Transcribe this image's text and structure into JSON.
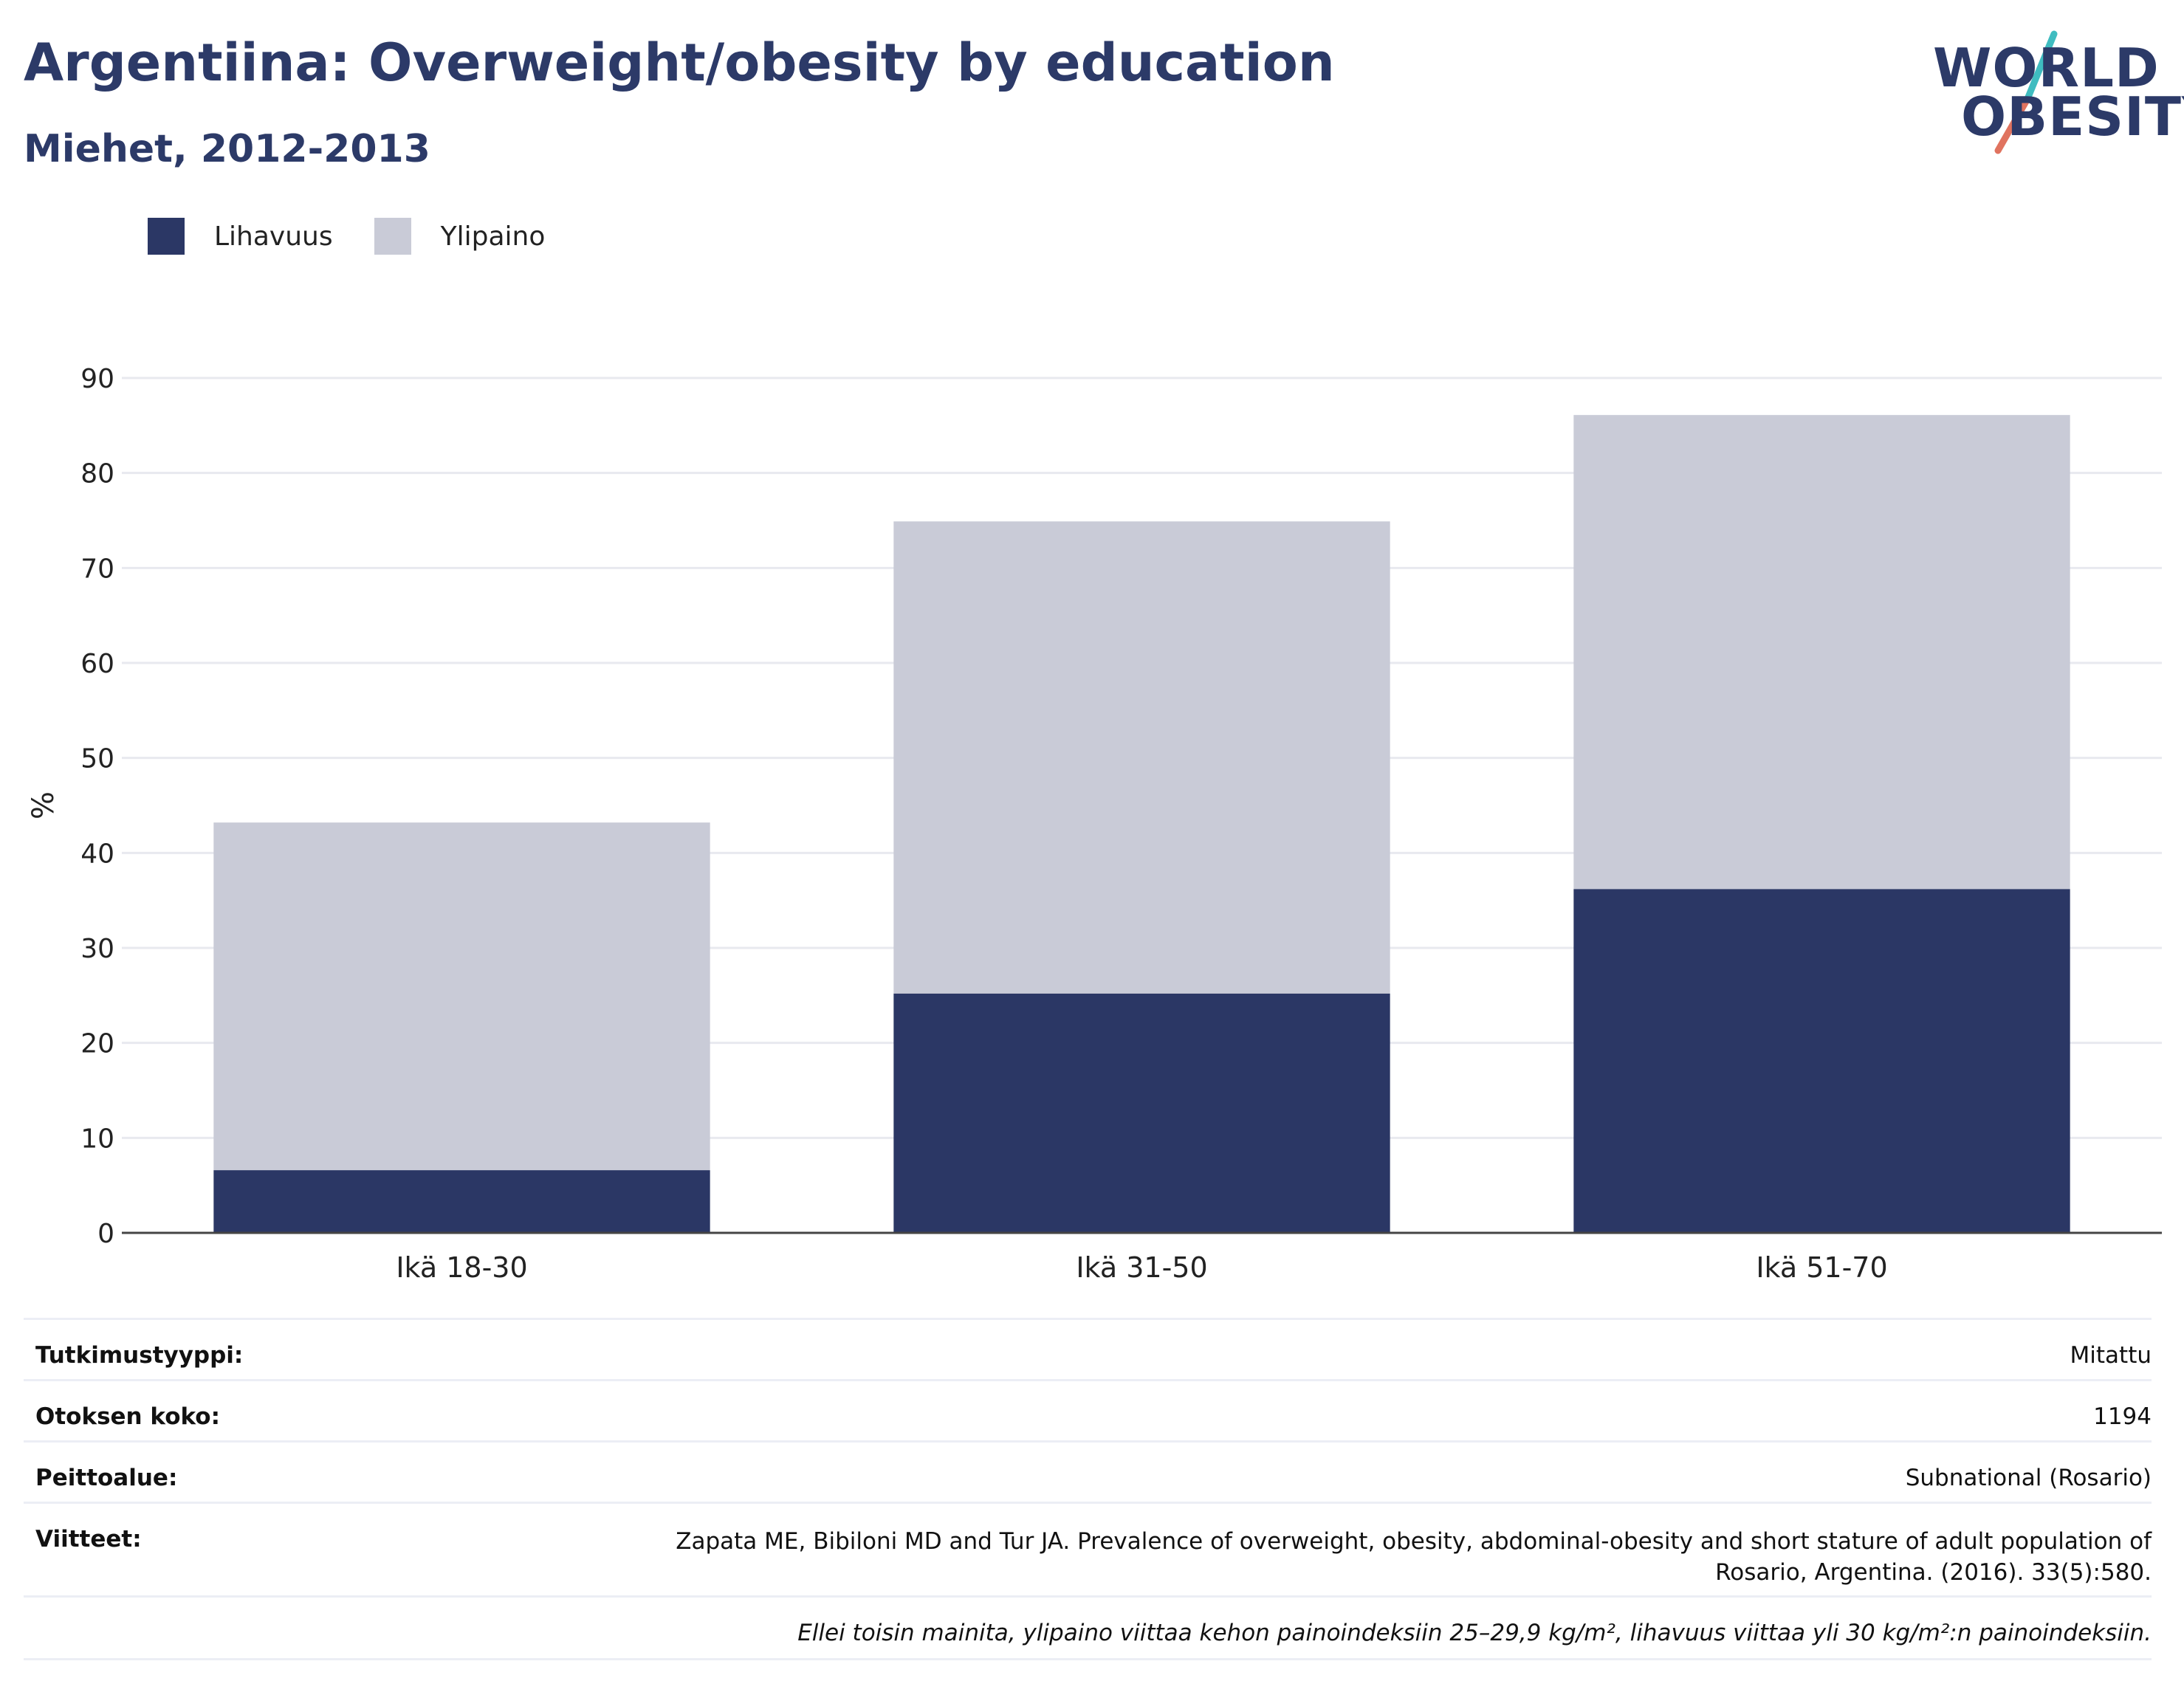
{
  "header": {
    "title": "Argentiina: Overweight/obesity by education",
    "subtitle": "Miehet, 2012-2013"
  },
  "logo": {
    "line1": "WORLD",
    "line2": "OBESITY"
  },
  "legend": [
    {
      "label": "Lihavuus",
      "color": "#2b3765"
    },
    {
      "label": "Ylipaino",
      "color": "#c9cbd7"
    }
  ],
  "chart_data": {
    "type": "bar",
    "stacked": true,
    "categories": [
      "Ikä 18-30",
      "Ikä 31-50",
      "Ikä 51-70"
    ],
    "series": [
      {
        "name": "Lihavuus",
        "values": [
          6.6,
          25.2,
          36.2
        ],
        "color": "#2b3765"
      },
      {
        "name": "Ylipaino",
        "values": [
          36.6,
          49.7,
          49.9
        ],
        "color": "#c9cbd7"
      }
    ],
    "ylabel": "%",
    "ylim": [
      0,
      90
    ],
    "yticks": [
      0,
      10,
      20,
      30,
      40,
      50,
      60,
      70,
      80,
      90
    ],
    "grid": true,
    "legend_position": "top-left"
  },
  "meta": [
    {
      "key": "Tutkimustyyppi:",
      "value": "Mitattu"
    },
    {
      "key": "Otoksen koko:",
      "value": "1194"
    },
    {
      "key": "Peittoalue:",
      "value": "Subnational (Rosario)"
    },
    {
      "key": "Viitteet:",
      "value_line1": "Zapata ME, Bibiloni MD and Tur JA. Prevalence of overweight, obesity, abdominal-obesity and short stature of adult population of",
      "value_line2": "Rosario, Argentina. (2016). 33(5):580."
    },
    {
      "key": "",
      "value": "Ellei toisin mainita, ylipaino viittaa kehon painoindeksiin 25–29,9 kg/m², lihavuus viittaa yli 30 kg/m²:n painoindeksiin."
    }
  ]
}
